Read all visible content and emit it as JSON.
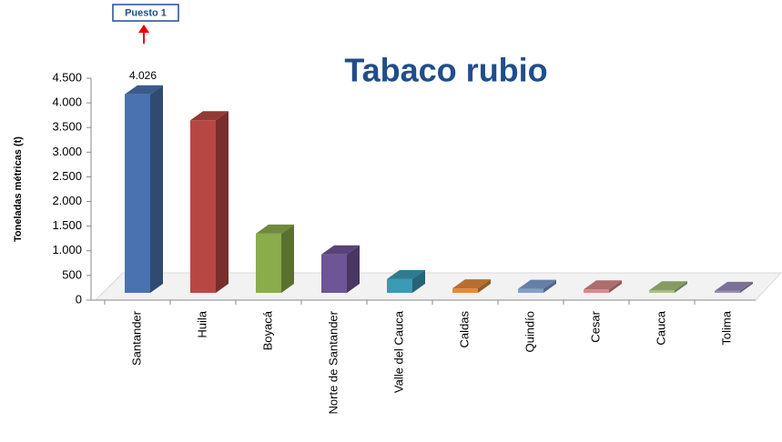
{
  "chart_data": {
    "type": "bar3d",
    "title": "Tabaco rubio",
    "y_label": "Toneladas métricas (t)",
    "annotation": "Puesto 1",
    "categories": [
      "Santander",
      "Huila",
      "Boyacá",
      "Norte de Santander",
      "Valle del Cauca",
      "Caldas",
      "Quindío",
      "Cesar",
      "Cauca",
      "Tolima"
    ],
    "values": [
      4026,
      3500,
      1200,
      780,
      280,
      90,
      80,
      70,
      50,
      40
    ],
    "value_labels": [
      "4.026",
      null,
      null,
      null,
      null,
      null,
      null,
      null,
      null,
      null
    ],
    "colors": [
      "#4a72b0",
      "#b84744",
      "#8bac4b",
      "#6e5596",
      "#3b9ab5",
      "#e38b3b",
      "#7f9fd0",
      "#d98a8a",
      "#a9c07d",
      "#9a8cbc"
    ],
    "ylim": [
      0,
      4500
    ],
    "yticks": [
      0,
      500,
      {
        "value": 1000,
        "label": "1.000"
      },
      {
        "value": 1500,
        "label": "1.500"
      },
      {
        "value": 2000,
        "label": "2.000"
      },
      {
        "value": 2500,
        "label": "2.500"
      },
      {
        "value": 3000,
        "label": "3.000"
      },
      {
        "value": 3500,
        "label": "3.500"
      },
      {
        "value": 4000,
        "label": "4.000"
      },
      {
        "value": 4500,
        "label": "4.500"
      }
    ]
  }
}
